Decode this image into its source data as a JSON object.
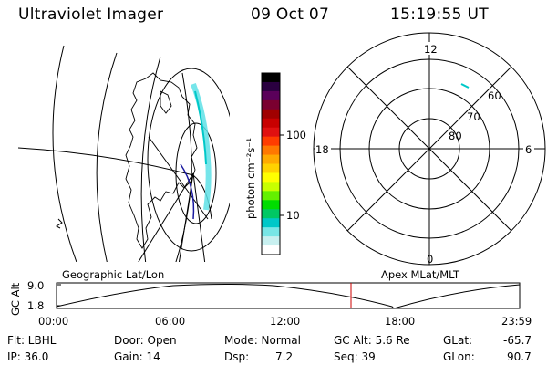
{
  "header": {
    "title": "Ultraviolet Imager",
    "date": "09 Oct 07",
    "time": "15:19:55 UT"
  },
  "colorbar": {
    "label": "photon cm⁻²s⁻¹",
    "ticks": [
      "100",
      "10"
    ],
    "colors": [
      "#000000",
      "#2a0040",
      "#5a005a",
      "#7a0030",
      "#a00000",
      "#c80000",
      "#e01010",
      "#ff3c00",
      "#ff7800",
      "#ffaa00",
      "#ffd200",
      "#ffff00",
      "#c8ff00",
      "#64f000",
      "#00dc00",
      "#00c864",
      "#00c8c8",
      "#78e6e6",
      "#c8f0f0",
      "#ffffff"
    ]
  },
  "polar_plot": {
    "mlt_labels": {
      "top": "12",
      "bottom": "0",
      "left": "18",
      "right": "6"
    },
    "lat_labels": [
      "60",
      "70",
      "80"
    ],
    "emission_color": "#00c8c8"
  },
  "timeline": {
    "ylabel": "GC Alt",
    "yticks": [
      "9.0",
      "1.8"
    ],
    "left_label": "Geographic Lat/Lon",
    "right_label": "Apex MLat/MLT",
    "xticks": [
      "00:00",
      "06:00",
      "12:00",
      "18:00",
      "23:59"
    ],
    "marker_color": "#cc0000"
  },
  "info": {
    "filter": "Flt: LBHL",
    "ip": "IP: 36.0",
    "door": "Door: Open",
    "gain": "Gain: 14",
    "mode": "Mode: Normal",
    "dsp": "Dsp:",
    "dsp_value": "7.2",
    "gc_alt": "GC Alt: 5.6 Re",
    "seq": "Seq: 39",
    "glat_label": "GLat:",
    "glat_value": "-65.7",
    "glon_label": "GLon:",
    "glon_value": "90.7"
  }
}
